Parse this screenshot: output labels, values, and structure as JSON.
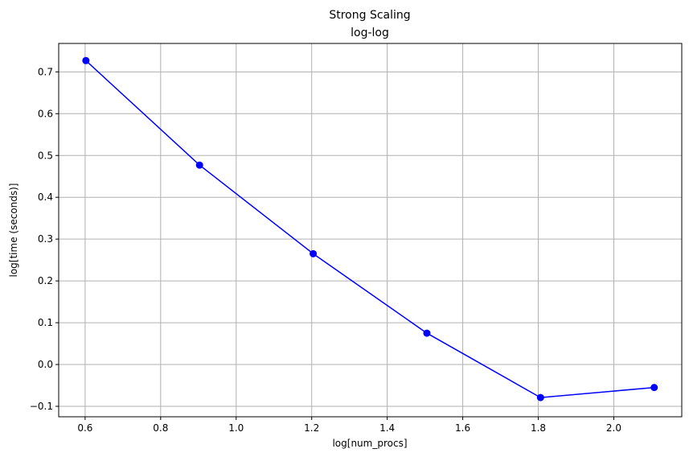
{
  "chart_data": {
    "type": "line",
    "title": "Strong Scaling",
    "subtitle": "log-log",
    "xlabel": "log[num_procs]",
    "ylabel": "log[time (seconds)]",
    "xlim": [
      0.53,
      2.18
    ],
    "ylim": [
      -0.125,
      0.768
    ],
    "xticks": [
      0.6,
      0.8,
      1.0,
      1.2,
      1.4,
      1.6,
      1.8,
      2.0
    ],
    "xtick_labels": [
      "0.6",
      "0.8",
      "1.0",
      "1.2",
      "1.4",
      "1.6",
      "1.8",
      "2.0"
    ],
    "yticks": [
      -0.1,
      0.0,
      0.1,
      0.2,
      0.3,
      0.4,
      0.5,
      0.6,
      0.7
    ],
    "ytick_labels": [
      "−0.1",
      "0.0",
      "0.1",
      "0.2",
      "0.3",
      "0.4",
      "0.5",
      "0.6",
      "0.7"
    ],
    "grid": true,
    "series": [
      {
        "color": "#0000ff",
        "marker": "circle",
        "x": [
          0.602,
          0.903,
          1.204,
          1.505,
          1.806,
          2.107
        ],
        "y": [
          0.727,
          0.477,
          0.265,
          0.075,
          -0.079,
          -0.055
        ]
      }
    ]
  }
}
